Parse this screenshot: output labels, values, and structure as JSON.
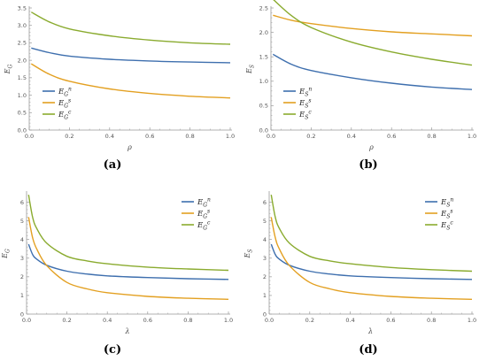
{
  "colors": {
    "series": [
      "#3e6fae",
      "#e3a021",
      "#8aab2f"
    ],
    "axis": "#999999",
    "text": "#555555"
  },
  "chart_data": [
    {
      "type": "line",
      "caption": "(a)",
      "xlabel": "ρ",
      "ylabel": "E_G",
      "xlim": [
        0,
        1
      ],
      "ylim": [
        0,
        3.5
      ],
      "xticks": [
        "0.0",
        "0.2",
        "0.4",
        "0.6",
        "0.8",
        "1.0"
      ],
      "yticks": [
        "0.0",
        "0.5",
        "1.0",
        "1.5",
        "2.0",
        "2.5",
        "3.0",
        "3.5"
      ],
      "grid": false,
      "legend": "bottom-left",
      "series": [
        {
          "name": "E_G^n",
          "x": [
            0.01,
            0.1,
            0.2,
            0.4,
            0.6,
            0.8,
            1.0
          ],
          "values": [
            2.35,
            2.22,
            2.12,
            2.03,
            1.98,
            1.95,
            1.93
          ]
        },
        {
          "name": "E_G^s",
          "x": [
            0.01,
            0.1,
            0.2,
            0.4,
            0.6,
            0.8,
            1.0
          ],
          "values": [
            1.9,
            1.6,
            1.4,
            1.18,
            1.05,
            0.97,
            0.92
          ]
        },
        {
          "name": "E_G^c",
          "x": [
            0.01,
            0.1,
            0.2,
            0.4,
            0.6,
            0.8,
            1.0
          ],
          "values": [
            3.38,
            3.1,
            2.9,
            2.7,
            2.58,
            2.5,
            2.46
          ]
        }
      ]
    },
    {
      "type": "line",
      "caption": "(b)",
      "xlabel": "ρ",
      "ylabel": "E_S",
      "xlim": [
        0,
        1
      ],
      "ylim": [
        0,
        2.5
      ],
      "xticks": [
        "0.0",
        "0.2",
        "0.4",
        "0.6",
        "0.8",
        "1.0"
      ],
      "yticks": [
        "0.0",
        "0.5",
        "1.0",
        "1.5",
        "2.0",
        "2.5"
      ],
      "grid": false,
      "legend": "bottom-left",
      "series": [
        {
          "name": "E_S^n",
          "x": [
            0.01,
            0.1,
            0.2,
            0.4,
            0.6,
            0.8,
            1.0
          ],
          "values": [
            1.55,
            1.35,
            1.22,
            1.07,
            0.96,
            0.88,
            0.83
          ]
        },
        {
          "name": "E_S^s",
          "x": [
            0.01,
            0.1,
            0.2,
            0.4,
            0.6,
            0.8,
            1.0
          ],
          "values": [
            2.35,
            2.25,
            2.18,
            2.08,
            2.01,
            1.97,
            1.93
          ]
        },
        {
          "name": "E_S^c",
          "x": [
            0.01,
            0.1,
            0.2,
            0.4,
            0.6,
            0.8,
            1.0
          ],
          "values": [
            2.68,
            2.35,
            2.1,
            1.8,
            1.6,
            1.45,
            1.33
          ]
        }
      ]
    },
    {
      "type": "line",
      "caption": "(c)",
      "xlabel": "λ",
      "ylabel": "E_G",
      "xlim": [
        0,
        1
      ],
      "ylim": [
        0,
        6.5
      ],
      "xticks": [
        "0.0",
        "0.2",
        "0.4",
        "0.6",
        "0.8",
        "1.0"
      ],
      "yticks": [
        "0",
        "1",
        "2",
        "3",
        "4",
        "5",
        "6"
      ],
      "grid": false,
      "legend": "top-right",
      "series": [
        {
          "name": "E_G^n",
          "x": [
            0.01,
            0.03,
            0.05,
            0.1,
            0.2,
            0.3,
            0.4,
            0.6,
            0.8,
            1.0
          ],
          "values": [
            3.75,
            3.2,
            2.95,
            2.62,
            2.3,
            2.15,
            2.05,
            1.96,
            1.9,
            1.86
          ]
        },
        {
          "name": "E_G^s",
          "x": [
            0.01,
            0.03,
            0.05,
            0.1,
            0.2,
            0.3,
            0.4,
            0.6,
            0.8,
            1.0
          ],
          "values": [
            5.2,
            4.1,
            3.5,
            2.6,
            1.7,
            1.35,
            1.15,
            0.95,
            0.85,
            0.79
          ]
        },
        {
          "name": "E_G^c",
          "x": [
            0.01,
            0.03,
            0.05,
            0.1,
            0.2,
            0.3,
            0.4,
            0.6,
            0.8,
            1.0
          ],
          "values": [
            6.4,
            5.2,
            4.6,
            3.8,
            3.1,
            2.85,
            2.7,
            2.52,
            2.42,
            2.35
          ]
        }
      ]
    },
    {
      "type": "line",
      "caption": "(d)",
      "xlabel": "λ",
      "ylabel": "E_S",
      "xlim": [
        0,
        1
      ],
      "ylim": [
        0,
        6.5
      ],
      "xticks": [
        "0.0",
        "0.2",
        "0.4",
        "0.6",
        "0.8",
        "1.0"
      ],
      "yticks": [
        "0",
        "1",
        "2",
        "3",
        "4",
        "5",
        "6"
      ],
      "grid": false,
      "legend": "top-right",
      "series": [
        {
          "name": "E_S^n",
          "x": [
            0.01,
            0.03,
            0.05,
            0.1,
            0.2,
            0.3,
            0.4,
            0.6,
            0.8,
            1.0
          ],
          "values": [
            3.75,
            3.2,
            2.95,
            2.62,
            2.3,
            2.15,
            2.05,
            1.96,
            1.9,
            1.86
          ]
        },
        {
          "name": "E_S^s",
          "x": [
            0.01,
            0.03,
            0.05,
            0.1,
            0.2,
            0.3,
            0.4,
            0.6,
            0.8,
            1.0
          ],
          "values": [
            5.2,
            4.1,
            3.5,
            2.6,
            1.7,
            1.35,
            1.15,
            0.95,
            0.85,
            0.79
          ]
        },
        {
          "name": "E_S^c",
          "x": [
            0.01,
            0.03,
            0.05,
            0.1,
            0.2,
            0.3,
            0.4,
            0.6,
            0.8,
            1.0
          ],
          "values": [
            6.4,
            5.2,
            4.6,
            3.8,
            3.1,
            2.85,
            2.7,
            2.5,
            2.38,
            2.3
          ]
        }
      ]
    }
  ],
  "legend_labels": [
    [
      {
        "base": "E",
        "sub": "G",
        "sup": "n"
      },
      {
        "base": "E",
        "sub": "G",
        "sup": "s"
      },
      {
        "base": "E",
        "sub": "G",
        "sup": "c"
      }
    ],
    [
      {
        "base": "E",
        "sub": "S",
        "sup": "n"
      },
      {
        "base": "E",
        "sub": "S",
        "sup": "s"
      },
      {
        "base": "E",
        "sub": "S",
        "sup": "c"
      }
    ],
    [
      {
        "base": "E",
        "sub": "G",
        "sup": "n"
      },
      {
        "base": "E",
        "sub": "G",
        "sup": "s"
      },
      {
        "base": "E",
        "sub": "G",
        "sup": "c"
      }
    ],
    [
      {
        "base": "E",
        "sub": "S",
        "sup": "n"
      },
      {
        "base": "E",
        "sub": "S",
        "sup": "s"
      },
      {
        "base": "E",
        "sub": "S",
        "sup": "c"
      }
    ]
  ],
  "ylabels": [
    {
      "base": "E",
      "sub": "G"
    },
    {
      "base": "E",
      "sub": "S"
    },
    {
      "base": "E",
      "sub": "G"
    },
    {
      "base": "E",
      "sub": "S"
    }
  ]
}
